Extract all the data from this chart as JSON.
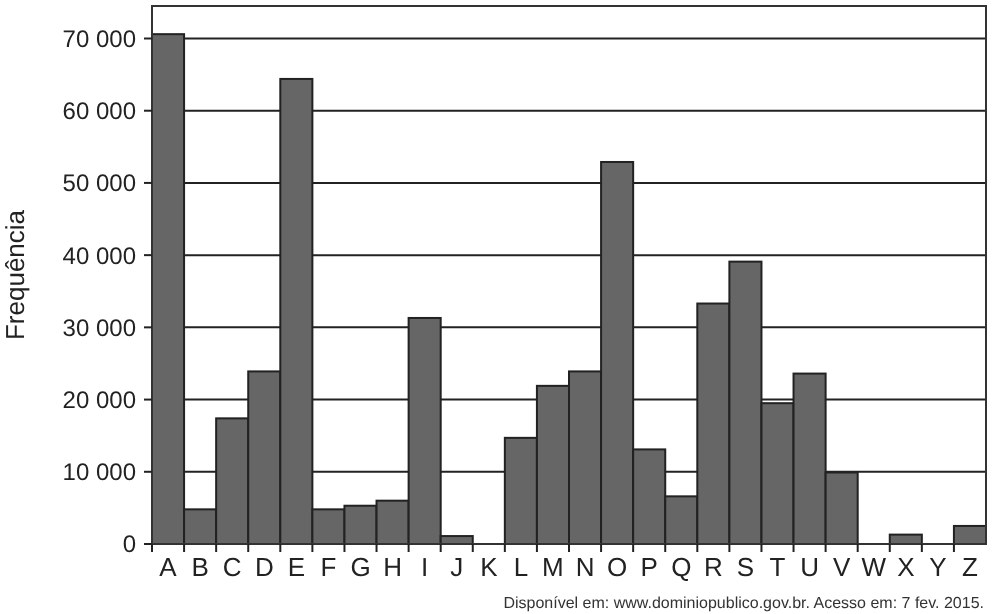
{
  "chart_data": {
    "type": "bar",
    "ylabel": "Frequência",
    "categories": [
      "A",
      "B",
      "C",
      "D",
      "E",
      "F",
      "G",
      "H",
      "I",
      "J",
      "K",
      "L",
      "M",
      "N",
      "O",
      "P",
      "Q",
      "R",
      "S",
      "T",
      "U",
      "V",
      "W",
      "X",
      "Y",
      "Z"
    ],
    "values": [
      70600,
      4800,
      17400,
      23900,
      64400,
      4800,
      5300,
      6000,
      31300,
      1100,
      0,
      14700,
      21900,
      23900,
      52900,
      13100,
      6600,
      33300,
      39100,
      19500,
      23600,
      9900,
      0,
      1300,
      0,
      2500
    ],
    "color": "#666666",
    "ylim": [
      0,
      74500
    ],
    "yticks": [
      {
        "value": 0,
        "label": "0"
      },
      {
        "value": 10000,
        "label": "10 000"
      },
      {
        "value": 20000,
        "label": "20 000"
      },
      {
        "value": 30000,
        "label": "30 000"
      },
      {
        "value": 40000,
        "label": "40 000"
      },
      {
        "value": 50000,
        "label": "50 000"
      },
      {
        "value": 60000,
        "label": "60 000"
      },
      {
        "value": 70000,
        "label": "70 000"
      }
    ],
    "grid": "y",
    "annotations": [
      "Disponível em: www.dominiopublico.gov.br. Acesso em: 7 fev. 2015."
    ]
  }
}
